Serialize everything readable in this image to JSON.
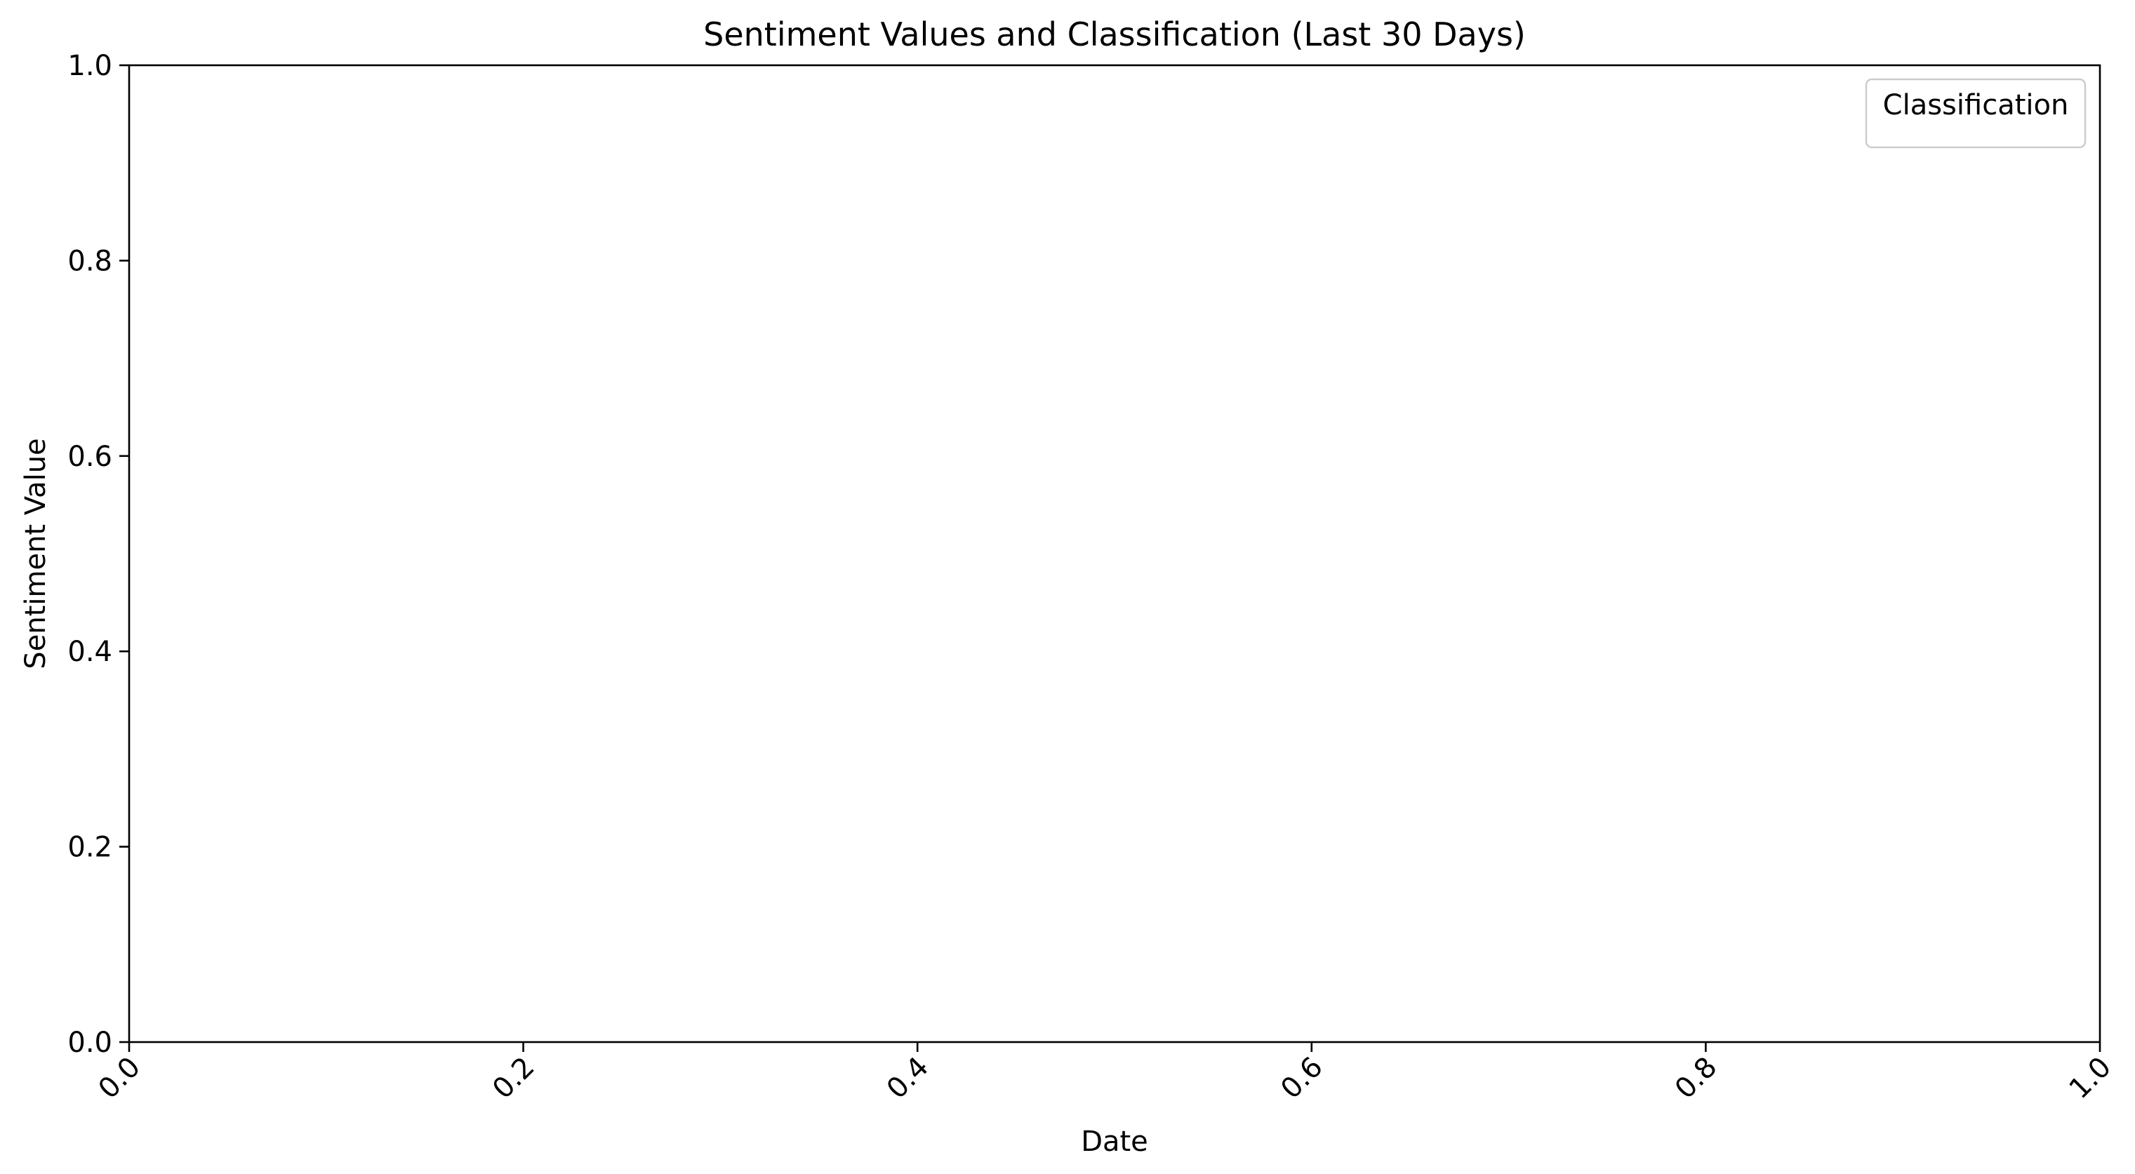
{
  "chart_data": {
    "type": "scatter",
    "title": "Sentiment Values and Classification (Last 30 Days)",
    "xlabel": "Date",
    "ylabel": "Sentiment Value",
    "xlim": [
      0.0,
      1.0
    ],
    "ylim": [
      0.0,
      1.0
    ],
    "x_ticks": [
      0.0,
      0.2,
      0.4,
      0.6,
      0.8,
      1.0
    ],
    "y_ticks": [
      0.0,
      0.2,
      0.4,
      0.6,
      0.8,
      1.0
    ],
    "x_tick_labels": [
      "0.0",
      "0.2",
      "0.4",
      "0.6",
      "0.8",
      "1.0"
    ],
    "y_tick_labels": [
      "0.0",
      "0.2",
      "0.4",
      "0.6",
      "0.8",
      "1.0"
    ],
    "x_tick_rotation_deg": 45,
    "grid": false,
    "legend": {
      "title": "Classification",
      "location": "upper right",
      "entries": []
    },
    "series": []
  }
}
